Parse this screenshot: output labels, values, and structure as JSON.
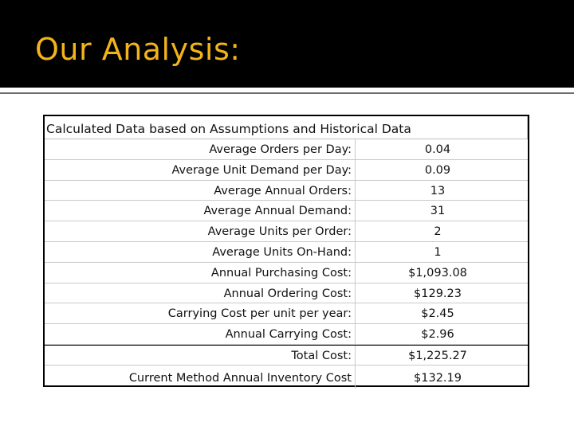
{
  "slide": {
    "title": "Our Analysis:"
  },
  "table": {
    "header": "Calculated Data based on Assumptions and Historical Data",
    "rows": [
      {
        "label": "Average Orders per Day:",
        "value": "0.04"
      },
      {
        "label": "Average Unit Demand per Day:",
        "value": "0.09"
      },
      {
        "label": "Average Annual Orders:",
        "value": "13"
      },
      {
        "label": "Average Annual Demand:",
        "value": "31"
      },
      {
        "label": "Average Units per Order:",
        "value": "2"
      },
      {
        "label": "Average Units On-Hand:",
        "value": "1"
      },
      {
        "label": "Annual Purchasing Cost:",
        "value": "$1,093.08"
      },
      {
        "label": "Annual Ordering Cost:",
        "value": "$129.23"
      },
      {
        "label": "Carrying Cost per unit per year:",
        "value": "$2.45"
      },
      {
        "label": "Annual Carrying Cost:",
        "value": "$2.96"
      }
    ],
    "total": {
      "label": "Total Cost:",
      "value": "$1,225.27"
    },
    "current": {
      "label": "Current Method Annual Inventory Cost",
      "value": "$132.19"
    }
  },
  "colors": {
    "title_bar": "#000000",
    "title_text": "#f2b418"
  }
}
